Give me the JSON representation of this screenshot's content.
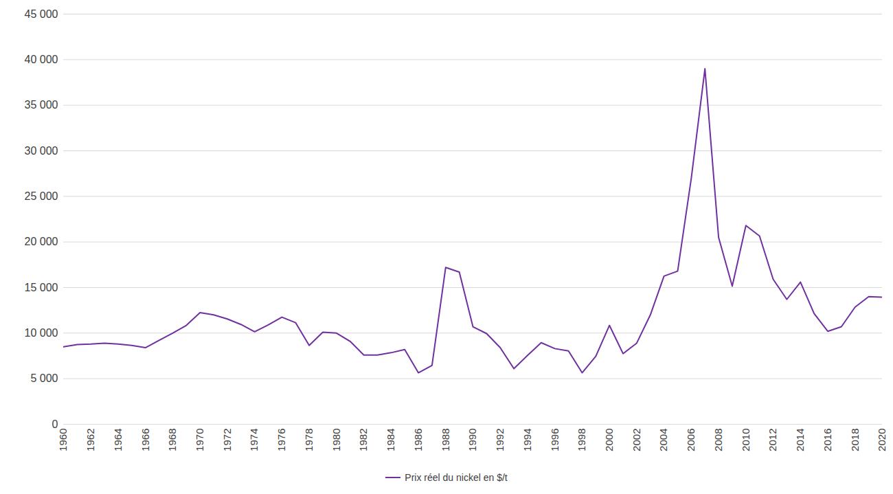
{
  "chart_data": {
    "type": "line",
    "x": [
      1960,
      1961,
      1962,
      1963,
      1964,
      1965,
      1966,
      1967,
      1968,
      1969,
      1970,
      1971,
      1972,
      1973,
      1974,
      1975,
      1976,
      1977,
      1978,
      1979,
      1980,
      1981,
      1982,
      1983,
      1984,
      1985,
      1986,
      1987,
      1988,
      1989,
      1990,
      1991,
      1992,
      1993,
      1994,
      1995,
      1996,
      1997,
      1998,
      1999,
      2000,
      2001,
      2002,
      2003,
      2004,
      2005,
      2006,
      2007,
      2008,
      2009,
      2010,
      2011,
      2012,
      2013,
      2014,
      2015,
      2016,
      2017,
      2018,
      2019,
      2020
    ],
    "series": [
      {
        "name": "Prix réel du nickel en $/t",
        "color": "#7030a0",
        "values": [
          8500,
          8750,
          8800,
          8900,
          8800,
          8650,
          8400,
          9200,
          10000,
          10850,
          12250,
          12000,
          11550,
          10950,
          10150,
          10900,
          11750,
          11150,
          8650,
          10100,
          10000,
          9100,
          7600,
          7600,
          7850,
          8200,
          5650,
          6450,
          17200,
          16700,
          10700,
          9950,
          8400,
          6100,
          7550,
          8950,
          8300,
          8050,
          5650,
          7450,
          10850,
          7750,
          8900,
          12000,
          16250,
          16800,
          27000,
          39000,
          20500,
          15150,
          21800,
          20650,
          15900,
          13700,
          15600,
          12150,
          10200,
          10700,
          12850,
          14000,
          13950
        ]
      }
    ],
    "xlim": [
      1960,
      2020
    ],
    "xticks": [
      1960,
      1962,
      1964,
      1966,
      1968,
      1970,
      1972,
      1974,
      1976,
      1978,
      1980,
      1982,
      1984,
      1986,
      1988,
      1990,
      1992,
      1994,
      1996,
      1998,
      2000,
      2002,
      2004,
      2006,
      2008,
      2010,
      2012,
      2014,
      2016,
      2018,
      2020
    ],
    "ylim": [
      0,
      45000
    ],
    "yticks": [
      0,
      {
        "value": 5000,
        "label": "5 000"
      },
      {
        "value": 10000,
        "label": "10 000"
      },
      {
        "value": 15000,
        "label": "15 000"
      },
      {
        "value": 20000,
        "label": "20 000"
      },
      {
        "value": 25000,
        "label": "25 000"
      },
      {
        "value": 30000,
        "label": "30 000"
      },
      {
        "value": 35000,
        "label": "35 000"
      },
      {
        "value": 40000,
        "label": "40 000"
      },
      {
        "value": 45000,
        "label": "45 000"
      }
    ],
    "grid": true,
    "legend": "bottom"
  }
}
